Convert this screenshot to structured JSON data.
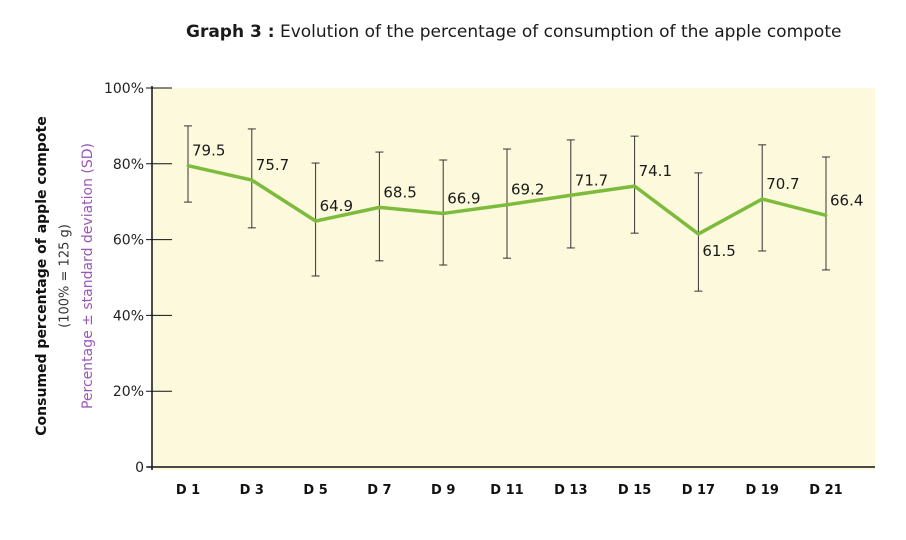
{
  "chart_data": {
    "type": "line",
    "title_bold": "Graph 3 :",
    "title": "Evolution of the percentage of consumption of the apple compote",
    "ylabel": "Consumed percentage of apple compote",
    "ylabel_sub": "(100% = 125 g)",
    "ylabel_note": "Percentage ± standard deviation (SD)",
    "categories": [
      "D 1",
      "D 3",
      "D 5",
      "D 7",
      "D 9",
      "D 11",
      "D 13",
      "D 15",
      "D 17",
      "D 19",
      "D 21"
    ],
    "values": [
      79.5,
      75.7,
      64.9,
      68.5,
      66.9,
      69.2,
      71.7,
      74.1,
      61.5,
      70.7,
      66.4
    ],
    "data_labels": [
      "79.5",
      "75.7",
      "64.9",
      "68.5",
      "66.9",
      "69.2",
      "71.7",
      "74.1",
      "61.5",
      "70.7",
      "66.4"
    ],
    "error_upper": [
      90.0,
      89.2,
      80.2,
      83.1,
      81.0,
      83.9,
      86.3,
      87.3,
      77.6,
      85.0,
      81.8
    ],
    "error_lower": [
      69.9,
      63.1,
      50.4,
      54.4,
      53.3,
      55.1,
      57.8,
      61.7,
      46.4,
      57.0,
      52.0
    ],
    "ylim": [
      0,
      100
    ],
    "yticks": [
      0,
      20,
      40,
      60,
      80,
      100
    ],
    "ytick_labels": [
      "0",
      "20%",
      "40%",
      "60%",
      "80%",
      "100%"
    ],
    "grid": false,
    "colors": {
      "line": "#7dbb3c",
      "plot_bg": "#fcf9dc",
      "error_bar": "#333333",
      "ylabel_note": "#9b57b4"
    }
  }
}
